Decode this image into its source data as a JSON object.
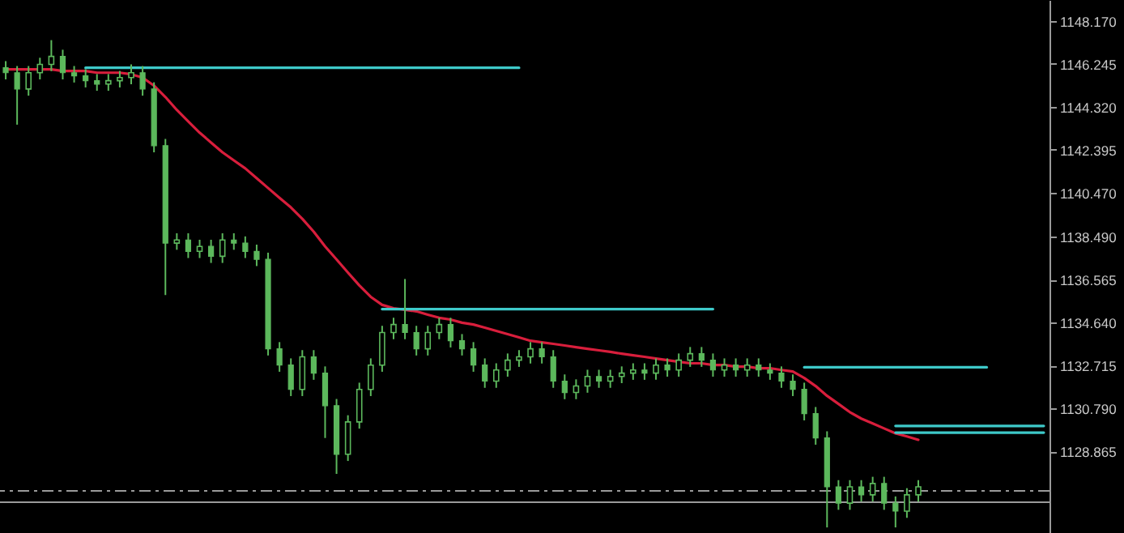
{
  "chart_data": {
    "type": "candlestick",
    "color": "#5cb85c",
    "categories": [
      null,
      null,
      null,
      null,
      null,
      null,
      null,
      null,
      null,
      null,
      null,
      null,
      null,
      null,
      null,
      null,
      null,
      null,
      null,
      null,
      null,
      null,
      null,
      null,
      null,
      null,
      null,
      null,
      null,
      null,
      null,
      null,
      null,
      null,
      null,
      null,
      null,
      null,
      null,
      null,
      null,
      null,
      null,
      null,
      null,
      null,
      null,
      null,
      null,
      null,
      null,
      null,
      null,
      null,
      null,
      null,
      null,
      null,
      null,
      null,
      null,
      null,
      null,
      null,
      null,
      null,
      null,
      null,
      null,
      null,
      null,
      null,
      null,
      null,
      null,
      null,
      null,
      null,
      null,
      null,
      null,
      null,
      null,
      null,
      null,
      null,
      null,
      null,
      null,
      null,
      null,
      null
    ],
    "ohlc": [
      [
        1146.06,
        1146.36,
        1145.54,
        1145.84
      ],
      [
        1145.84,
        1146.14,
        1143.51,
        1145.11
      ],
      [
        1145.11,
        1146.14,
        1144.81,
        1145.84
      ],
      [
        1145.84,
        1146.51,
        1145.54,
        1146.21
      ],
      [
        1146.21,
        1147.3,
        1145.91,
        1146.57
      ],
      [
        1146.57,
        1146.87,
        1145.54,
        1145.84
      ],
      [
        1145.84,
        1146.14,
        1145.4,
        1145.7
      ],
      [
        1145.7,
        1146.0,
        1145.18,
        1145.48
      ],
      [
        1145.48,
        1145.78,
        1145.03,
        1145.33
      ],
      [
        1145.33,
        1145.78,
        1145.03,
        1145.48
      ],
      [
        1145.48,
        1145.92,
        1145.18,
        1145.62
      ],
      [
        1145.62,
        1146.21,
        1145.32,
        1145.84
      ],
      [
        1145.84,
        1146.14,
        1144.81,
        1145.11
      ],
      [
        1145.11,
        1145.41,
        1142.27,
        1142.57
      ],
      [
        1142.57,
        1142.87,
        1135.87,
        1138.2
      ],
      [
        1138.2,
        1138.64,
        1137.9,
        1138.34
      ],
      [
        1138.34,
        1138.64,
        1137.53,
        1137.83
      ],
      [
        1137.83,
        1138.35,
        1137.53,
        1138.05
      ],
      [
        1138.05,
        1138.35,
        1137.31,
        1137.61
      ],
      [
        1137.61,
        1138.64,
        1137.31,
        1138.34
      ],
      [
        1138.34,
        1138.64,
        1137.9,
        1138.2
      ],
      [
        1138.2,
        1138.5,
        1137.53,
        1137.83
      ],
      [
        1137.83,
        1138.13,
        1137.17,
        1137.47
      ],
      [
        1137.47,
        1137.77,
        1133.16,
        1133.46
      ],
      [
        1133.46,
        1133.76,
        1132.43,
        1132.73
      ],
      [
        1132.73,
        1133.03,
        1131.34,
        1131.64
      ],
      [
        1131.64,
        1133.4,
        1131.34,
        1133.1
      ],
      [
        1133.1,
        1133.4,
        1132.07,
        1132.37
      ],
      [
        1132.37,
        1132.67,
        1129.46,
        1130.91
      ],
      [
        1130.91,
        1131.21,
        1127.85,
        1128.73
      ],
      [
        1128.73,
        1130.48,
        1128.43,
        1130.18
      ],
      [
        1130.18,
        1131.94,
        1129.88,
        1131.64
      ],
      [
        1131.64,
        1133.03,
        1131.34,
        1132.73
      ],
      [
        1132.73,
        1134.49,
        1132.43,
        1134.19
      ],
      [
        1134.19,
        1134.85,
        1133.89,
        1134.55
      ],
      [
        1134.55,
        1136.59,
        1133.89,
        1134.19
      ],
      [
        1134.19,
        1134.49,
        1133.16,
        1133.46
      ],
      [
        1133.46,
        1134.49,
        1133.16,
        1134.19
      ],
      [
        1134.19,
        1134.85,
        1133.89,
        1134.55
      ],
      [
        1134.55,
        1134.85,
        1133.52,
        1133.82
      ],
      [
        1133.82,
        1134.12,
        1133.16,
        1133.46
      ],
      [
        1133.46,
        1133.76,
        1132.43,
        1132.73
      ],
      [
        1132.73,
        1133.03,
        1131.71,
        1132.01
      ],
      [
        1132.01,
        1132.81,
        1131.71,
        1132.51
      ],
      [
        1132.51,
        1133.25,
        1132.21,
        1132.95
      ],
      [
        1132.95,
        1133.4,
        1132.65,
        1133.1
      ],
      [
        1133.1,
        1133.76,
        1132.8,
        1133.46
      ],
      [
        1133.46,
        1133.76,
        1132.8,
        1133.1
      ],
      [
        1133.1,
        1133.4,
        1131.71,
        1132.01
      ],
      [
        1132.01,
        1132.31,
        1131.2,
        1131.5
      ],
      [
        1131.5,
        1132.09,
        1131.2,
        1131.79
      ],
      [
        1131.79,
        1132.52,
        1131.49,
        1132.22
      ],
      [
        1132.22,
        1132.52,
        1131.71,
        1132.01
      ],
      [
        1132.01,
        1132.52,
        1131.71,
        1132.22
      ],
      [
        1132.22,
        1132.67,
        1131.92,
        1132.37
      ],
      [
        1132.37,
        1132.81,
        1132.07,
        1132.51
      ],
      [
        1132.51,
        1132.81,
        1132.07,
        1132.37
      ],
      [
        1132.37,
        1133.03,
        1132.07,
        1132.73
      ],
      [
        1132.73,
        1133.03,
        1132.21,
        1132.51
      ],
      [
        1132.51,
        1133.25,
        1132.21,
        1132.95
      ],
      [
        1132.95,
        1133.54,
        1132.65,
        1133.24
      ],
      [
        1133.24,
        1133.54,
        1132.65,
        1132.95
      ],
      [
        1132.95,
        1133.25,
        1132.21,
        1132.51
      ],
      [
        1132.51,
        1133.03,
        1132.21,
        1132.73
      ],
      [
        1132.73,
        1133.03,
        1132.21,
        1132.51
      ],
      [
        1132.51,
        1133.03,
        1132.21,
        1132.73
      ],
      [
        1132.73,
        1133.03,
        1132.21,
        1132.51
      ],
      [
        1132.51,
        1132.81,
        1132.07,
        1132.37
      ],
      [
        1132.37,
        1132.67,
        1131.71,
        1132.01
      ],
      [
        1132.01,
        1132.31,
        1131.34,
        1131.64
      ],
      [
        1131.64,
        1131.94,
        1130.25,
        1130.55
      ],
      [
        1130.55,
        1130.85,
        1129.16,
        1129.46
      ],
      [
        1129.46,
        1129.76,
        1125.45,
        1127.27
      ],
      [
        1127.27,
        1127.57,
        1126.24,
        1126.54
      ],
      [
        1126.54,
        1127.57,
        1126.24,
        1127.27
      ],
      [
        1127.27,
        1127.57,
        1126.61,
        1126.91
      ],
      [
        1126.91,
        1127.72,
        1126.61,
        1127.42
      ],
      [
        1127.42,
        1127.72,
        1126.24,
        1126.54
      ],
      [
        1126.54,
        1126.84,
        1125.45,
        1126.18
      ],
      [
        1126.18,
        1127.21,
        1125.88,
        1126.91
      ],
      [
        1126.91,
        1127.57,
        1126.61,
        1127.27
      ],
      null,
      null,
      null,
      null,
      null,
      null,
      null,
      null,
      null,
      null,
      null
    ],
    "series": [
      {
        "type": "line",
        "color": "#d81e3c",
        "values": [
          1145.99,
          1145.99,
          1145.99,
          1145.99,
          1145.99,
          1145.92,
          1145.92,
          1145.92,
          1145.84,
          1145.84,
          1145.84,
          1145.77,
          1145.62,
          1145.26,
          1144.75,
          1144.17,
          1143.66,
          1143.15,
          1142.71,
          1142.27,
          1141.91,
          1141.55,
          1141.11,
          1140.67,
          1140.23,
          1139.8,
          1139.29,
          1138.71,
          1138.05,
          1137.47,
          1136.88,
          1136.3,
          1135.79,
          1135.43,
          1135.28,
          1135.21,
          1135.14,
          1134.99,
          1134.85,
          1134.77,
          1134.63,
          1134.55,
          1134.41,
          1134.26,
          1134.12,
          1133.97,
          1133.82,
          1133.75,
          1133.68,
          1133.61,
          1133.53,
          1133.46,
          1133.39,
          1133.32,
          1133.24,
          1133.17,
          1133.1,
          1133.02,
          1132.95,
          1132.88,
          1132.81,
          1132.81,
          1132.73,
          1132.73,
          1132.66,
          1132.66,
          1132.59,
          1132.59,
          1132.51,
          1132.44,
          1132.15,
          1131.79,
          1131.35,
          1130.99,
          1130.62,
          1130.33,
          1130.11,
          1129.89,
          1129.67,
          1129.53,
          1129.38,
          null,
          null,
          null,
          null,
          null,
          null,
          null,
          null,
          null,
          null,
          null
        ]
      },
      {
        "type": "line",
        "color": "#3ec9c9",
        "values": [
          null,
          null,
          null,
          null,
          null,
          null,
          null,
          1146.06,
          1146.06,
          1146.06,
          1146.06,
          1146.06,
          1146.06,
          1146.06,
          1146.06,
          1146.06,
          1146.06,
          1146.06,
          1146.06,
          1146.06,
          1146.06,
          1146.06,
          1146.06,
          1146.06,
          1146.06,
          1146.06,
          1146.06,
          1146.06,
          1146.06,
          1146.06,
          1146.06,
          1146.06,
          1146.06,
          1146.06,
          1146.06,
          1146.06,
          1146.06,
          1146.06,
          1146.06,
          1146.06,
          1146.06,
          1146.06,
          1146.06,
          1146.06,
          1146.06,
          1146.06,
          null,
          null,
          null,
          null,
          null,
          null,
          null,
          null,
          null,
          null,
          null,
          null,
          null,
          null,
          null,
          null,
          null,
          null,
          null,
          null,
          null,
          null,
          null,
          null,
          null,
          null,
          null,
          null,
          null,
          null,
          null,
          null,
          null,
          null,
          null,
          null,
          null,
          null,
          null,
          null,
          null,
          null,
          null,
          null,
          null,
          null
        ]
      },
      {
        "type": "line",
        "color": "#3ec9c9",
        "values": [
          null,
          null,
          null,
          null,
          null,
          null,
          null,
          null,
          null,
          null,
          null,
          null,
          null,
          null,
          null,
          null,
          null,
          null,
          null,
          null,
          null,
          null,
          null,
          null,
          null,
          null,
          null,
          null,
          null,
          null,
          null,
          null,
          null,
          1135.24,
          1135.24,
          1135.24,
          1135.24,
          1135.24,
          1135.24,
          1135.24,
          1135.24,
          1135.24,
          1135.24,
          1135.24,
          1135.24,
          1135.24,
          1135.24,
          1135.24,
          1135.24,
          1135.24,
          1135.24,
          1135.24,
          1135.24,
          1135.24,
          1135.24,
          1135.24,
          1135.24,
          1135.24,
          1135.24,
          1135.24,
          1135.24,
          1135.24,
          1135.24,
          null,
          null,
          null,
          null,
          null,
          null,
          null,
          null,
          null,
          null,
          null,
          null,
          null,
          null,
          null,
          null,
          null,
          null,
          null,
          null,
          null,
          null,
          null,
          null,
          null,
          null,
          null,
          null,
          null
        ]
      },
      {
        "type": "line",
        "color": "#3ec9c9",
        "values": [
          null,
          null,
          null,
          null,
          null,
          null,
          null,
          null,
          null,
          null,
          null,
          null,
          null,
          null,
          null,
          null,
          null,
          null,
          null,
          null,
          null,
          null,
          null,
          null,
          null,
          null,
          null,
          null,
          null,
          null,
          null,
          null,
          null,
          null,
          null,
          null,
          null,
          null,
          null,
          null,
          null,
          null,
          null,
          null,
          null,
          null,
          null,
          null,
          null,
          null,
          null,
          null,
          null,
          null,
          null,
          null,
          null,
          null,
          null,
          null,
          null,
          null,
          null,
          null,
          null,
          null,
          null,
          null,
          null,
          null,
          1132.63,
          1132.63,
          1132.63,
          1132.63,
          1132.63,
          1132.63,
          1132.63,
          1132.63,
          1132.63,
          1132.63,
          1132.63,
          1132.63,
          1132.63,
          1132.63,
          1132.63,
          1132.63,
          1132.63,
          null,
          null,
          null,
          null,
          null
        ]
      },
      {
        "type": "line",
        "color": "#3ec9c9",
        "values": [
          null,
          null,
          null,
          null,
          null,
          null,
          null,
          null,
          null,
          null,
          null,
          null,
          null,
          null,
          null,
          null,
          null,
          null,
          null,
          null,
          null,
          null,
          null,
          null,
          null,
          null,
          null,
          null,
          null,
          null,
          null,
          null,
          null,
          null,
          null,
          null,
          null,
          null,
          null,
          null,
          null,
          null,
          null,
          null,
          null,
          null,
          null,
          null,
          null,
          null,
          null,
          null,
          null,
          null,
          null,
          null,
          null,
          null,
          null,
          null,
          null,
          null,
          null,
          null,
          null,
          null,
          null,
          null,
          null,
          null,
          null,
          null,
          null,
          null,
          null,
          null,
          null,
          null,
          1130.0,
          1130.0,
          1130.0,
          1130.0,
          1130.0,
          1130.0,
          1130.0,
          1130.0,
          1130.0,
          1130.0,
          1130.0,
          1130.0,
          1130.0,
          1130.0
        ]
      },
      {
        "type": "line",
        "color": "#3ec9c9",
        "values": [
          null,
          null,
          null,
          null,
          null,
          null,
          null,
          null,
          null,
          null,
          null,
          null,
          null,
          null,
          null,
          null,
          null,
          null,
          null,
          null,
          null,
          null,
          null,
          null,
          null,
          null,
          null,
          null,
          null,
          null,
          null,
          null,
          null,
          null,
          null,
          null,
          null,
          null,
          null,
          null,
          null,
          null,
          null,
          null,
          null,
          null,
          null,
          null,
          null,
          null,
          null,
          null,
          null,
          null,
          null,
          null,
          null,
          null,
          null,
          null,
          null,
          null,
          null,
          null,
          null,
          null,
          null,
          null,
          null,
          null,
          null,
          null,
          null,
          null,
          null,
          null,
          null,
          null,
          1129.7,
          1129.7,
          1129.7,
          1129.7,
          1129.7,
          1129.7,
          1129.7,
          1129.7,
          1129.7,
          1129.7,
          1129.7,
          1129.7,
          1129.7,
          1129.7
        ]
      }
    ],
    "ref_lines": [
      {
        "axis": "y",
        "value": 1127.09,
        "color": "#9a9a9a",
        "line_style": "dashed"
      },
      {
        "axis": "y",
        "value": 1126.58,
        "color": "#9a9a9a",
        "line_style": "solid"
      }
    ],
    "ylim": [
      1125.2,
      1149.1
    ],
    "yticks": [
      {
        "value": 1148.17,
        "label": "1148.170"
      },
      {
        "value": 1146.245,
        "label": "1146.245"
      },
      {
        "value": 1144.32,
        "label": "1144.320"
      },
      {
        "value": 1142.395,
        "label": "1142.395"
      },
      {
        "value": 1140.47,
        "label": "1140.470"
      },
      {
        "value": 1138.49,
        "label": "1138.490"
      },
      {
        "value": 1136.565,
        "label": "1136.565"
      },
      {
        "value": 1134.64,
        "label": "1134.640"
      },
      {
        "value": 1132.715,
        "label": "1132.715"
      },
      {
        "value": 1130.79,
        "label": "1130.790"
      },
      {
        "value": 1128.865,
        "label": "1128.865"
      }
    ],
    "grid": false
  }
}
